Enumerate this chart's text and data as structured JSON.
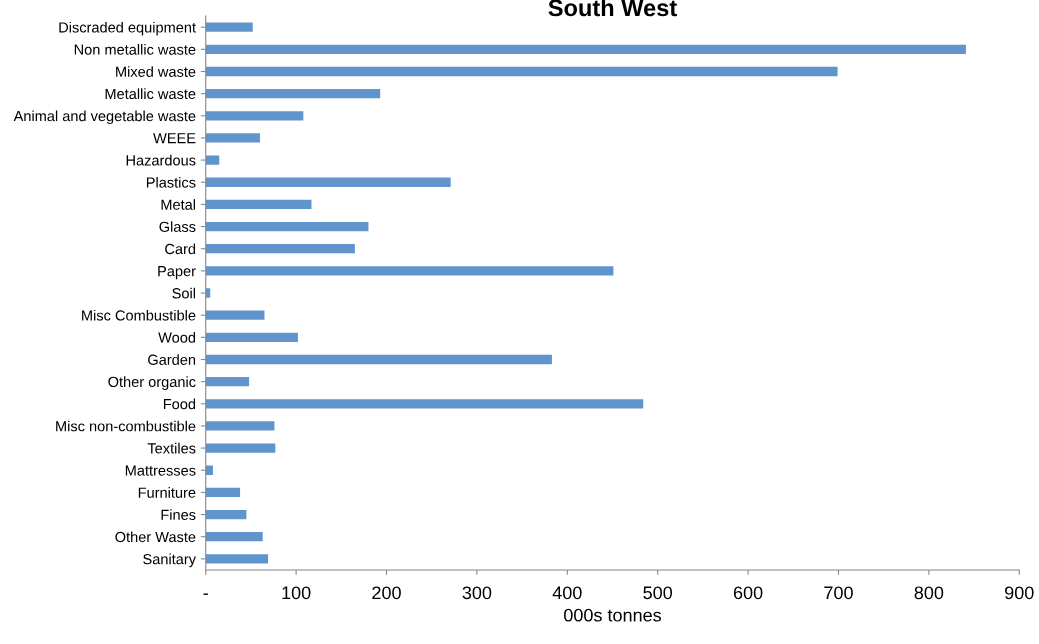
{
  "chart_data": {
    "type": "bar",
    "orientation": "horizontal",
    "title": "South West",
    "xlabel": "000s tonnes",
    "categories": [
      "Discraded equipment",
      "Non metallic waste",
      "Mixed waste",
      "Metallic waste",
      "Animal and vegetable waste",
      "WEEE",
      "Hazardous",
      "Plastics",
      "Metal",
      "Glass",
      "Card",
      "Paper",
      "Soil",
      "Misc Combustible",
      "Wood",
      "Garden",
      "Other organic",
      "Food",
      "Misc non-combustible",
      "Textiles",
      "Mattresses",
      "Furniture",
      "Fines",
      "Other Waste",
      "Sanitary"
    ],
    "values": [
      52,
      841,
      699,
      193,
      108,
      60,
      15,
      271,
      117,
      180,
      165,
      451,
      5,
      65,
      102,
      383,
      48,
      484,
      76,
      77,
      8,
      38,
      45,
      63,
      69
    ],
    "color": "#5f94cd",
    "xlim": [
      0,
      900
    ],
    "xticks": [
      {
        "value": 0,
        "label": "-"
      },
      100,
      200,
      300,
      400,
      500,
      600,
      700,
      800,
      900
    ],
    "grid": false,
    "legend": false
  }
}
